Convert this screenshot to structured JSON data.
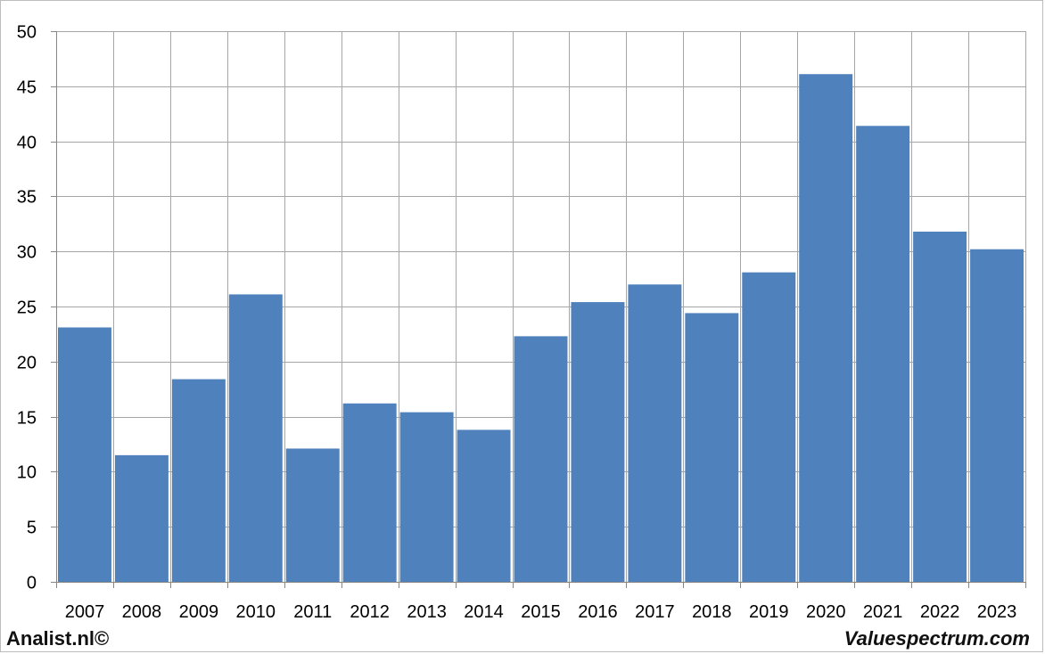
{
  "footer": {
    "left_text": "Analist.nl©",
    "right_text": "Valuespectrum.com"
  },
  "colors": {
    "bar": "#4f81bd",
    "grid": "#a6a6a6",
    "axis": "#868686"
  },
  "chart_data": {
    "type": "bar",
    "categories": [
      "2007",
      "2008",
      "2009",
      "2010",
      "2011",
      "2012",
      "2013",
      "2014",
      "2015",
      "2016",
      "2017",
      "2018",
      "2019",
      "2020",
      "2021",
      "2022",
      "2023"
    ],
    "values": [
      23.1,
      11.5,
      18.4,
      26.1,
      12.1,
      16.2,
      15.4,
      13.8,
      22.3,
      25.4,
      27.0,
      24.4,
      28.1,
      46.1,
      41.4,
      31.8,
      30.2
    ],
    "ylim": [
      0,
      50
    ],
    "yticks": [
      0,
      5,
      10,
      15,
      20,
      25,
      30,
      35,
      40,
      45,
      50
    ],
    "grid": true,
    "title": "",
    "xlabel": "",
    "ylabel": ""
  }
}
